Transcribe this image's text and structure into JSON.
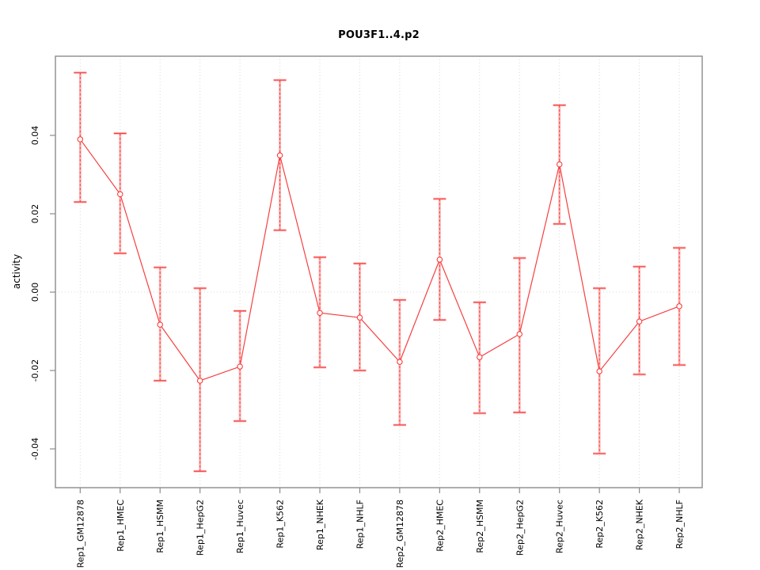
{
  "chart_data": {
    "type": "line",
    "title": "POU3F1..4.p2",
    "ylabel": "activity",
    "xlabel": "",
    "ylim": [
      -0.0499,
      0.0602
    ],
    "yticks": [
      -0.04,
      -0.02,
      0,
      0.02,
      0.04
    ],
    "ytick_labels": [
      "-0.04",
      "-0.02",
      "0.00",
      "0.02",
      "0.04"
    ],
    "legend_position": "none",
    "grid": {
      "vertical": "dotted line at each category",
      "horizontal": "dotted line at y=0 only"
    },
    "categories": [
      "Rep1_GM12878",
      "Rep1_HMEC",
      "Rep1_HSMM",
      "Rep1_HepG2",
      "Rep1_Huvec",
      "Rep1_K562",
      "Rep1_NHEK",
      "Rep1_NHLF",
      "Rep2_GM12878",
      "Rep2_HMEC",
      "Rep2_HSMM",
      "Rep2_HepG2",
      "Rep2_Huvec",
      "Rep2_K562",
      "Rep2_NHEK",
      "Rep2_NHLF"
    ],
    "series": [
      {
        "name": "activity",
        "marker": "open-circle",
        "values": [
          0.039,
          0.025,
          -0.0083,
          -0.0226,
          -0.019,
          0.0349,
          -0.0053,
          -0.0065,
          -0.0178,
          0.0083,
          -0.0166,
          -0.0107,
          0.0326,
          -0.0202,
          -0.0075,
          -0.0036
        ],
        "ci_high": [
          0.056,
          0.0405,
          0.0063,
          0.001,
          -0.0048,
          0.0541,
          0.0089,
          0.0073,
          -0.002,
          0.0238,
          -0.0026,
          0.0087,
          0.0477,
          0.001,
          0.0065,
          0.0113
        ],
        "ci_low": [
          0.023,
          0.0099,
          -0.0226,
          -0.0457,
          -0.0329,
          0.0158,
          -0.0192,
          -0.02,
          -0.0339,
          -0.0071,
          -0.0309,
          -0.0307,
          0.0174,
          -0.0412,
          -0.021,
          -0.0186
        ]
      }
    ],
    "colors": {
      "line": "#f54040",
      "errorbar_body": "#ffb3b3",
      "grid": "#d8d8d8",
      "axis_box": "#8c8c8c",
      "text": "#000000",
      "background": "#ffffff"
    }
  }
}
